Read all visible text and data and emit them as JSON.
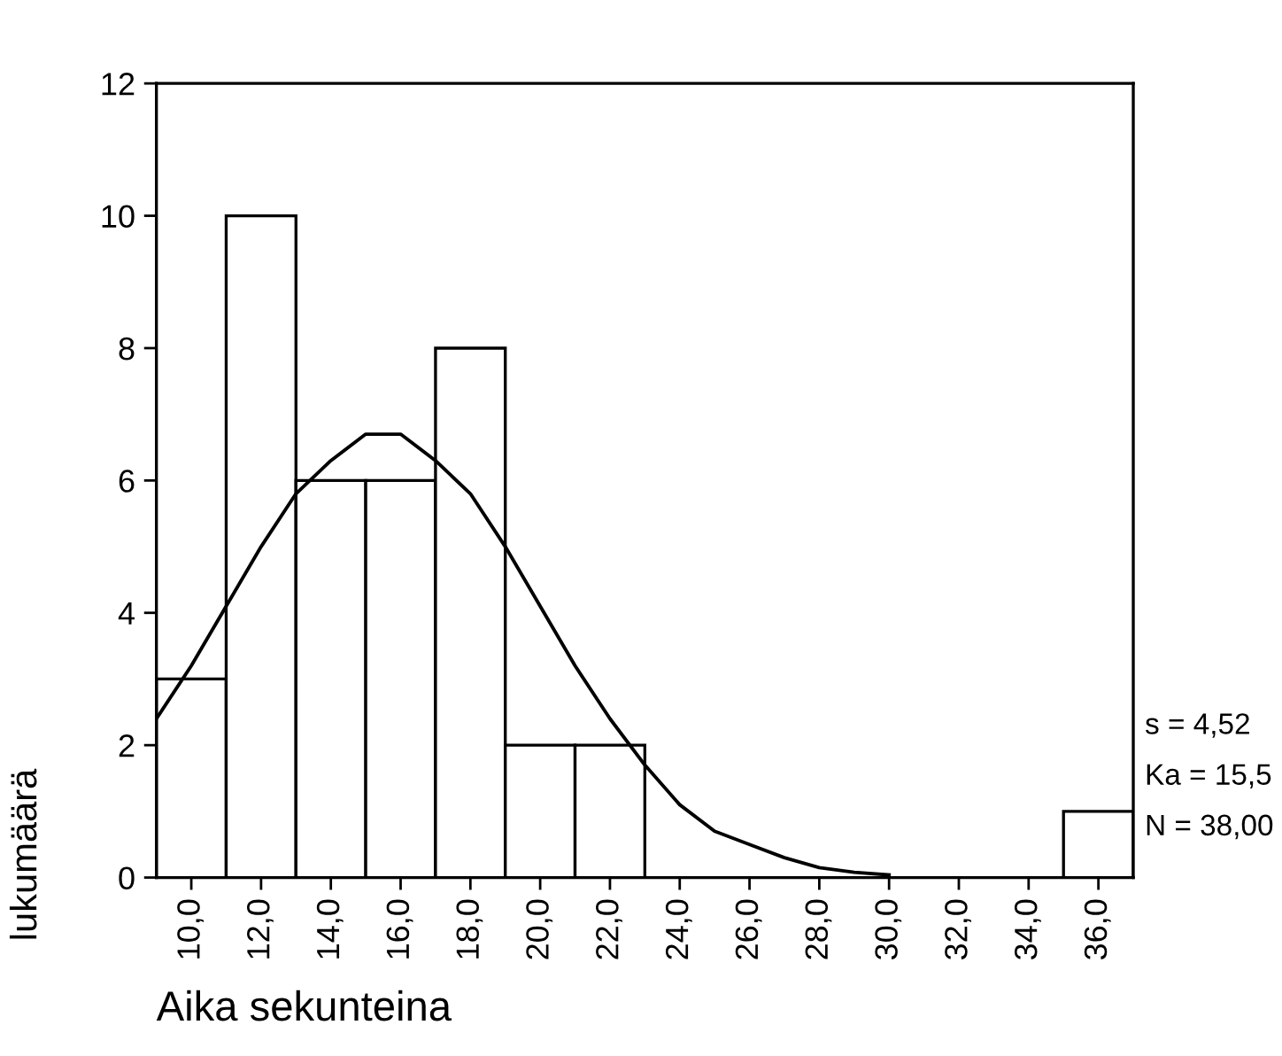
{
  "chart_data": {
    "type": "histogram",
    "xlabel": "Aika sekunteina",
    "ylabel": "lukumäärä",
    "bins": [
      9,
      11,
      13,
      15,
      17,
      19,
      21,
      23,
      25,
      27,
      29,
      31,
      33,
      35,
      37
    ],
    "values": [
      3,
      10,
      6,
      6,
      8,
      2,
      2,
      0,
      0,
      0,
      0,
      0,
      0,
      1
    ],
    "color": "#ffffff",
    "xlim": [
      9,
      37
    ],
    "xticks": [
      {
        "value": 10,
        "label": "10,0"
      },
      {
        "value": 12,
        "label": "12,0"
      },
      {
        "value": 14,
        "label": "14,0"
      },
      {
        "value": 16,
        "label": "16,0"
      },
      {
        "value": 18,
        "label": "18,0"
      },
      {
        "value": 20,
        "label": "20,0"
      },
      {
        "value": 22,
        "label": "22,0"
      },
      {
        "value": 24,
        "label": "24,0"
      },
      {
        "value": 26,
        "label": "26,0"
      },
      {
        "value": 28,
        "label": "28,0"
      },
      {
        "value": 30,
        "label": "30,0"
      },
      {
        "value": 32,
        "label": "32,0"
      },
      {
        "value": 34,
        "label": "34,0"
      },
      {
        "value": 36,
        "label": "36,0"
      }
    ],
    "ylim": [
      0,
      12
    ],
    "yticks": [
      0,
      2,
      4,
      6,
      8,
      10,
      12
    ],
    "series": [
      {
        "type": "line",
        "color": "#000000",
        "x": [
          9,
          10,
          11,
          12,
          13,
          14,
          15,
          15.5,
          16,
          17,
          18,
          19,
          20,
          21,
          22,
          23,
          24,
          25,
          26,
          27,
          28,
          29,
          30
        ],
        "values": [
          2.4,
          3.2,
          4.1,
          5.0,
          5.8,
          6.3,
          6.7,
          6.7,
          6.7,
          6.3,
          5.8,
          5.0,
          4.1,
          3.2,
          2.4,
          1.7,
          1.1,
          0.7,
          0.5,
          0.3,
          0.15,
          0.08,
          0.04
        ]
      }
    ],
    "annotations": [
      "s = 4,52",
      "Ka = 15,5",
      "N = 38,00"
    ],
    "grid": false,
    "legend": false,
    "marker": "none",
    "line_style": "solid"
  }
}
